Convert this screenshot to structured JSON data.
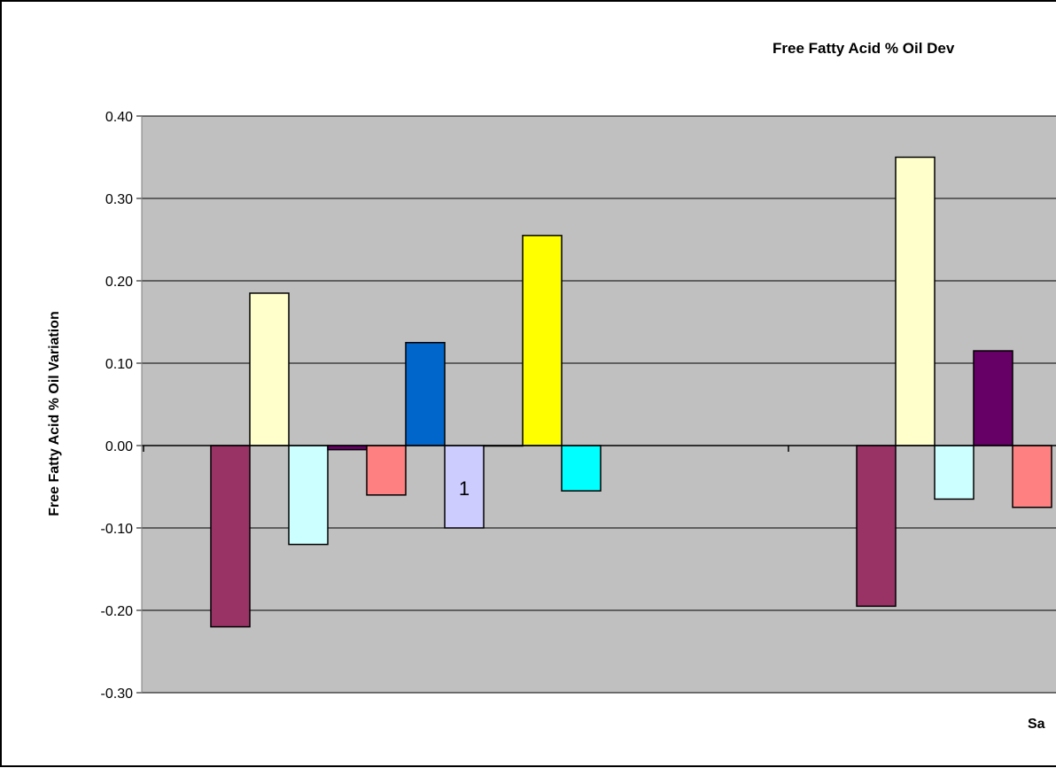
{
  "chart_data": {
    "type": "bar",
    "title": "Free Fatty Acid % Oil Dev",
    "ylabel": "Free Fatty Acid % Oil Variation",
    "xlabel": "Sa",
    "ylim": [
      -0.3,
      0.4
    ],
    "yticks": [
      0.4,
      0.3,
      0.2,
      0.1,
      0.0,
      -0.1,
      -0.2,
      -0.3
    ],
    "ytick_labels": [
      "0.40",
      "0.30",
      "0.20",
      "0.10",
      "0.00",
      "-0.10",
      "-0.20",
      "-0.30"
    ],
    "grid": true,
    "colors": {
      "plot_bg": "#c0c0c0",
      "gridline": "#000000"
    },
    "groups": [
      {
        "bars": [
          {
            "value": -0.22,
            "color": "#993366"
          },
          {
            "value": 0.185,
            "color": "#ffffcc"
          },
          {
            "value": -0.12,
            "color": "#ccffff"
          },
          {
            "value": -0.005,
            "color": "#660066"
          },
          {
            "value": -0.06,
            "color": "#ff8080"
          },
          {
            "value": 0.125,
            "color": "#0066cc"
          },
          {
            "value": -0.1,
            "color": "#ccccff",
            "label": "1"
          },
          {
            "value": 0.0,
            "color": "#000080"
          },
          {
            "value": 0.255,
            "color": "#ffff00"
          },
          {
            "value": -0.055,
            "color": "#00ffff"
          }
        ]
      },
      {
        "bars": [
          {
            "value": -0.195,
            "color": "#993366"
          },
          {
            "value": 0.35,
            "color": "#ffffcc"
          },
          {
            "value": -0.065,
            "color": "#ccffff"
          },
          {
            "value": 0.115,
            "color": "#660066"
          },
          {
            "value": -0.075,
            "color": "#ff8080"
          }
        ]
      }
    ]
  }
}
